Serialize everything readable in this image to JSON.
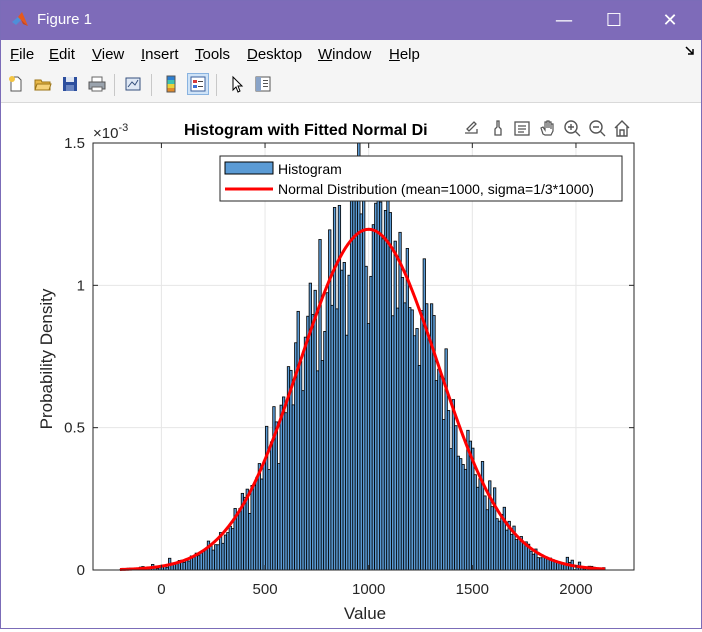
{
  "window": {
    "title": "Figure 1",
    "minimize_glyph": "—",
    "maximize_glyph": "☐",
    "close_glyph": "✕"
  },
  "menubar": {
    "items": [
      {
        "key": "F",
        "rest": "ile"
      },
      {
        "key": "E",
        "rest": "dit"
      },
      {
        "key": "V",
        "rest": "iew"
      },
      {
        "key": "I",
        "rest": "nsert"
      },
      {
        "key": "T",
        "rest": "ools"
      },
      {
        "key": "D",
        "rest": "esktop"
      },
      {
        "key": "W",
        "rest": "indow"
      },
      {
        "key": "H",
        "rest": "elp"
      }
    ]
  },
  "toolbar": {
    "icons": [
      "new-figure-icon",
      "open-file-icon",
      "save-icon",
      "print-icon",
      "link-plot-icon",
      "insert-colorbar-icon",
      "insert-legend-icon",
      "edit-plot-icon",
      "property-inspector-icon"
    ]
  },
  "axes_toolbar": {
    "icons": [
      "export-icon",
      "brush-icon",
      "data-tips-icon",
      "pan-icon",
      "zoom-in-icon",
      "zoom-out-icon",
      "restore-view-icon"
    ]
  },
  "colors": {
    "bar_fill": "#5b9bd5",
    "bar_edge": "#000000",
    "curve": "#ff0000",
    "titlebar": "#7e6bb9"
  },
  "chart_data": {
    "type": "bar",
    "title": "Histogram with Fitted Normal Di",
    "xlabel": "Value",
    "ylabel": "Probability Density",
    "y_exponent_label": "×10",
    "y_exponent_power": "-3",
    "xlim": [
      -330,
      2280
    ],
    "ylim": [
      0,
      0.0015
    ],
    "xticks": [
      0,
      500,
      1000,
      1500,
      2000
    ],
    "xtick_labels": [
      "0",
      "500",
      "1000",
      "1500",
      "2000"
    ],
    "yticks": [
      0,
      0.0005,
      0.001,
      0.0015
    ],
    "ytick_labels": [
      "0",
      "0.5",
      "1",
      "1.5"
    ],
    "grid": true,
    "legend_position": "top-right",
    "series": [
      {
        "name": "Histogram",
        "type": "bar"
      },
      {
        "name": "Normal Distribution (mean=1000, sigma=1/3*1000)",
        "type": "line",
        "mean": 1000,
        "sigma": 333.33
      }
    ],
    "bin_range": [
      -200,
      2140
    ],
    "bin_count": 200,
    "approx_peak_density": 0.0012
  }
}
